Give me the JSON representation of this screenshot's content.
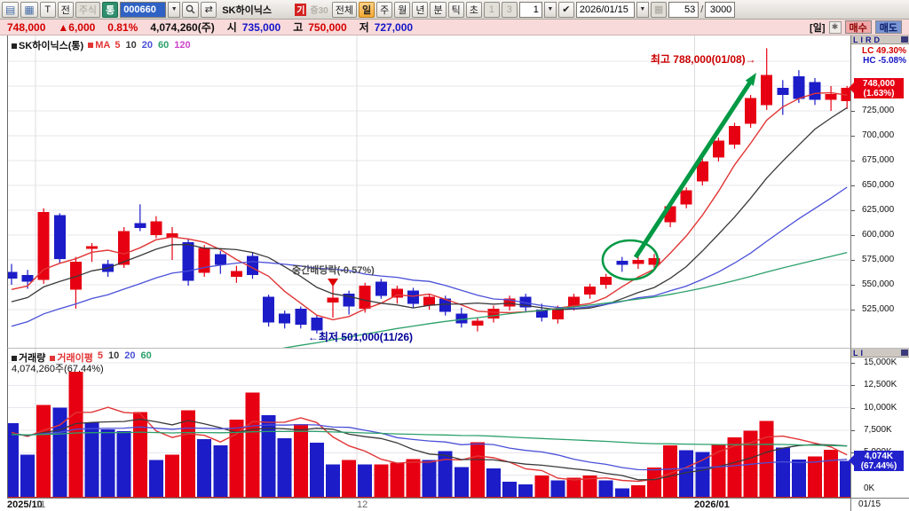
{
  "toolbar": {
    "layout_icon1": "▤",
    "layout_icon2": "▦",
    "t_button": "T",
    "jeon_button": "전",
    "stock_type_label": "주식",
    "tong_badge": "통",
    "stock_code": "000660",
    "dropdown_arrow": "▼",
    "search_icon_hint": "search",
    "refresh_icon": "⇄",
    "stock_name": "SK하이닉스",
    "flag_badge": "기",
    "margin_badge": "증30",
    "period_buttons": [
      "전체",
      "일",
      "주",
      "월",
      "년",
      "분",
      "틱",
      "초"
    ],
    "selected_period": "일",
    "preset_1": "1",
    "preset_3": "3",
    "interval_value": "1",
    "check_icon": "✔",
    "date_value": "2026/01/15",
    "mini_grid_icon": "▦",
    "bar_count": "53",
    "slash": "/",
    "bar_total": "3000"
  },
  "price_bar": {
    "price": "748,000",
    "change": "▲6,000",
    "change_pct": "0.81%",
    "volume": "4,074,260(주)",
    "open_label": "시",
    "open": "735,000",
    "high_label": "고",
    "high": "750,000",
    "low_label": "저",
    "low": "727,000",
    "mode_label": "[일]",
    "gear_icon": "✱",
    "buy_label": "매수",
    "sell_label": "매도"
  },
  "main_pane": {
    "title": "SK하이닉스(통)",
    "ma_label": "MA",
    "ma_items": [
      {
        "label": "5",
        "color": "#e23535"
      },
      {
        "label": "10",
        "color": "#3a3a3a"
      },
      {
        "label": "20",
        "color": "#4a50d8"
      },
      {
        "label": "60",
        "color": "#2ba06a"
      },
      {
        "label": "120",
        "color": "#cc44cc"
      }
    ],
    "axis_header": "LIRD",
    "lc_label": "LC  49.30%",
    "hc_label": "HC  -5.08%",
    "price_badge_value": "748,000",
    "price_badge_pct": "(1.63%)"
  },
  "volume_pane": {
    "title": "거래량",
    "ma_title": "거래이평",
    "ma_items": [
      {
        "label": "5",
        "color": "#e23535"
      },
      {
        "label": "10",
        "color": "#3a3a3a"
      },
      {
        "label": "20",
        "color": "#4a50d8"
      },
      {
        "label": "60",
        "color": "#2ba06a"
      }
    ],
    "current_line": "4,074,260주(67.44%)",
    "axis_header": "LI",
    "vol_badge_value": "4,074K",
    "vol_badge_pct": "(67.44%)",
    "date_label": "01/15"
  },
  "x_axis": {
    "start_label": "2025/10",
    "month_marks": [
      {
        "index": 2,
        "label": "11",
        "major": false
      },
      {
        "index": 22,
        "label": "12",
        "major": false
      },
      {
        "index": 43,
        "label": "2026/01",
        "major": true
      }
    ]
  },
  "chart_data": {
    "type": "candlestick+volume",
    "title": "SK하이닉스(통) 일봉",
    "price_axis": {
      "tick_values": [
        725000,
        700000,
        675000,
        650000,
        625000,
        600000,
        575000,
        550000,
        525000
      ],
      "tick_labels": [
        "725,000",
        "700,000",
        "675,000",
        "650,000",
        "625,000",
        "600,000",
        "575,000",
        "550,000",
        "525,000"
      ],
      "extra_gridlines": [
        775000,
        750000
      ]
    },
    "volume_axis": {
      "tick_values_K": [
        15000,
        12500,
        10000,
        7500,
        5000
      ],
      "tick_labels": [
        "15,000K",
        "12,500K",
        "10,000K",
        "7,500K",
        "5,000K",
        "0K"
      ]
    },
    "up_color": "#e60012",
    "down_color": "#1c1cc8",
    "candles_ohlc_won": [
      [
        563000,
        571000,
        550000,
        556000
      ],
      [
        560000,
        565000,
        546000,
        553000
      ],
      [
        555000,
        627000,
        551000,
        623000
      ],
      [
        620000,
        622000,
        572000,
        576000
      ],
      [
        545000,
        578000,
        526000,
        573000
      ],
      [
        586000,
        592000,
        573000,
        589000
      ],
      [
        571000,
        575000,
        558000,
        563000
      ],
      [
        570000,
        608000,
        567000,
        604000
      ],
      [
        612000,
        631000,
        604000,
        607000
      ],
      [
        600000,
        619000,
        597000,
        614000
      ],
      [
        598000,
        608000,
        575000,
        602000
      ],
      [
        593000,
        596000,
        549000,
        554000
      ],
      [
        562000,
        590000,
        558000,
        587000
      ],
      [
        581000,
        584000,
        561000,
        570000
      ],
      [
        558000,
        569000,
        552000,
        564000
      ],
      [
        579000,
        583000,
        556000,
        560000
      ],
      [
        538000,
        540000,
        508000,
        512000
      ],
      [
        521000,
        524000,
        506000,
        511000
      ],
      [
        526000,
        528000,
        506000,
        510000
      ],
      [
        517000,
        519000,
        501000,
        504000
      ],
      [
        532000,
        551000,
        517000,
        537000
      ],
      [
        541000,
        544000,
        520000,
        528000
      ],
      [
        526000,
        552000,
        522000,
        549000
      ],
      [
        553000,
        556000,
        536000,
        539000
      ],
      [
        537000,
        549000,
        531000,
        546000
      ],
      [
        544000,
        547000,
        527000,
        531000
      ],
      [
        529000,
        541000,
        525000,
        538000
      ],
      [
        536000,
        539000,
        519000,
        523000
      ],
      [
        521000,
        527000,
        507000,
        511000
      ],
      [
        509000,
        517000,
        503000,
        514000
      ],
      [
        516000,
        529000,
        512000,
        526000
      ],
      [
        528000,
        539000,
        524000,
        536000
      ],
      [
        538000,
        541000,
        523000,
        527000
      ],
      [
        525000,
        531000,
        513000,
        517000
      ],
      [
        515000,
        529000,
        511000,
        526000
      ],
      [
        528000,
        541000,
        524000,
        538000
      ],
      [
        540000,
        551000,
        536000,
        548000
      ],
      [
        550000,
        561000,
        546000,
        558000
      ],
      [
        574000,
        578000,
        563000,
        570000
      ],
      [
        571000,
        579000,
        566000,
        575000
      ],
      [
        570000,
        581000,
        567000,
        577000
      ],
      [
        613000,
        633000,
        608000,
        629000
      ],
      [
        631000,
        648000,
        627000,
        645000
      ],
      [
        654000,
        677000,
        650000,
        674000
      ],
      [
        678000,
        698000,
        674000,
        695000
      ],
      [
        691000,
        713000,
        687000,
        710000
      ],
      [
        712000,
        741000,
        708000,
        738000
      ],
      [
        731000,
        788000,
        726000,
        761000
      ],
      [
        748000,
        756000,
        721000,
        741000
      ],
      [
        760000,
        766000,
        733000,
        737000
      ],
      [
        754000,
        758000,
        731000,
        736000
      ],
      [
        736000,
        750000,
        725000,
        742000
      ],
      [
        735000,
        750000,
        727000,
        748000
      ]
    ],
    "volumes_K": [
      8300,
      4800,
      10300,
      10000,
      14000,
      8400,
      7600,
      7400,
      9500,
      4200,
      4800,
      9700,
      6500,
      5800,
      8700,
      11700,
      9200,
      6600,
      8200,
      6100,
      3700,
      4200,
      3700,
      3700,
      3900,
      4300,
      4200,
      5200,
      3400,
      6160,
      3240,
      1760,
      1480,
      2460,
      1930,
      2220,
      2460,
      1930,
      1060,
      1400,
      3350,
      5810,
      5280,
      5100,
      5990,
      6690,
      7470,
      8520,
      5570,
      4220,
      4570,
      5350,
      4074
    ],
    "volume_colors": [
      "B",
      "B",
      "R",
      "B",
      "R",
      "B",
      "B",
      "B",
      "R",
      "B",
      "R",
      "R",
      "B",
      "B",
      "R",
      "R",
      "B",
      "B",
      "R",
      "B",
      "B",
      "R",
      "B",
      "R",
      "R",
      "R",
      "B",
      "B",
      "B",
      "R",
      "B",
      "B",
      "B",
      "R",
      "B",
      "R",
      "R",
      "B",
      "B",
      "R",
      "R",
      "R",
      "B",
      "B",
      "R",
      "R",
      "R",
      "R",
      "B",
      "B",
      "R",
      "R",
      "B"
    ],
    "annotations": [
      {
        "id": "high",
        "text": "최고 788,000(01/08)→",
        "color": "#cc0000",
        "candle_index": 47,
        "value": 788000
      },
      {
        "id": "low",
        "text": "←최저 501,000(11/26)",
        "color": "#000099",
        "candle_index": 19,
        "value": 501000
      },
      {
        "id": "exdiv",
        "text": "중간배당락(-0.57%)",
        "color": "#4a4a4a",
        "candle_index": 20
      },
      {
        "id": "trend-arrow",
        "type": "arrow",
        "color": "#009944",
        "from_index": 39,
        "to_index": 47
      },
      {
        "id": "focus-ellipse",
        "type": "ellipse",
        "color": "#009944",
        "center_index": 38.5
      }
    ]
  }
}
